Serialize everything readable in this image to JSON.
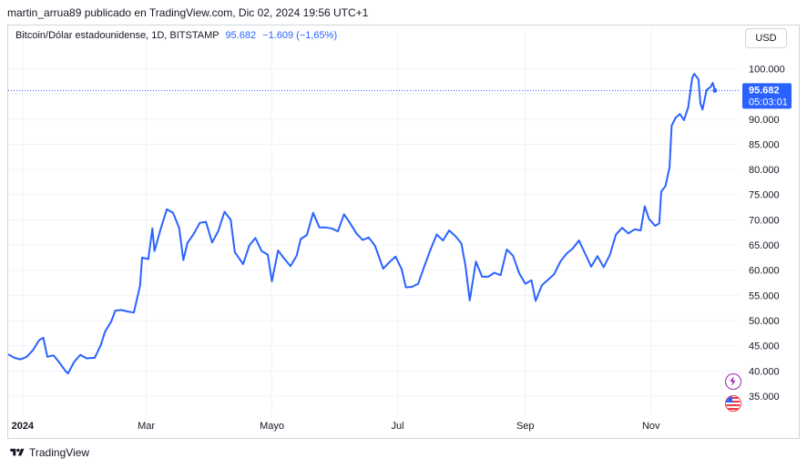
{
  "header": {
    "publisher_line": "martin_arrua89 publicado en TradingView.com, Dic 02, 2024 19:56 UTC+1"
  },
  "legend": {
    "symbol": "Bitcoin/Dólar estadounidense, 1D, BITSTAMP",
    "price": "95.682",
    "change": "−1.609 (−1,65%)"
  },
  "currency_button": "USD",
  "price_label": {
    "price": "95.682",
    "countdown": "05:03:01"
  },
  "footer": {
    "brand": "TradingView"
  },
  "icons": [
    "tradingview-logo-icon",
    "lightning-icon",
    "us-flag-icon"
  ],
  "colors": {
    "line": "#2962ff",
    "price_label_bg": "#2962ff",
    "grid": "#f0f3fa",
    "bolt_badge": "#9c27b0",
    "flag_badge": "#f23645"
  },
  "chart_data": {
    "type": "line",
    "title": "",
    "xlabel": "",
    "ylabel": "",
    "ylim": [
      31200,
      103700
    ],
    "y_ticks": [
      35000,
      40000,
      45000,
      50000,
      55000,
      60000,
      65000,
      70000,
      75000,
      80000,
      85000,
      90000,
      95000,
      100000
    ],
    "y_tick_labels": [
      "35.000",
      "40.000",
      "45.000",
      "50.000",
      "55.000",
      "60.000",
      "65.000",
      "70.000",
      "75.000",
      "80.000",
      "85.000",
      "90.000",
      "95.000",
      "100.000"
    ],
    "x_range": [
      "2023-12-25",
      "2024-12-14"
    ],
    "x_ticks": [
      {
        "date": "2024-01-01",
        "label": "2024"
      },
      {
        "date": "2024-03-01",
        "label": "Mar"
      },
      {
        "date": "2024-05-01",
        "label": "Mayo"
      },
      {
        "date": "2024-07-01",
        "label": "Jul"
      },
      {
        "date": "2024-09-01",
        "label": "Sep"
      },
      {
        "date": "2024-11-01",
        "label": "Nov"
      }
    ],
    "grid": true,
    "last_price": 95682,
    "series": [
      {
        "points": [
          [
            "2023-12-25",
            43300
          ],
          [
            "2023-12-28",
            42600
          ],
          [
            "2023-12-31",
            42300
          ],
          [
            "2024-01-03",
            42800
          ],
          [
            "2024-01-06",
            44100
          ],
          [
            "2024-01-09",
            46100
          ],
          [
            "2024-01-11",
            46600
          ],
          [
            "2024-01-13",
            42800
          ],
          [
            "2024-01-16",
            43100
          ],
          [
            "2024-01-19",
            41600
          ],
          [
            "2024-01-22",
            39900
          ],
          [
            "2024-01-23",
            39500
          ],
          [
            "2024-01-26",
            41800
          ],
          [
            "2024-01-29",
            43200
          ],
          [
            "2024-02-01",
            42500
          ],
          [
            "2024-02-05",
            42600
          ],
          [
            "2024-02-08",
            45200
          ],
          [
            "2024-02-10",
            47800
          ],
          [
            "2024-02-13",
            49800
          ],
          [
            "2024-02-15",
            52000
          ],
          [
            "2024-02-18",
            52100
          ],
          [
            "2024-02-21",
            51800
          ],
          [
            "2024-02-24",
            51600
          ],
          [
            "2024-02-27",
            57000
          ],
          [
            "2024-02-28",
            62500
          ],
          [
            "2024-03-02",
            62200
          ],
          [
            "2024-03-04",
            68300
          ],
          [
            "2024-03-05",
            63800
          ],
          [
            "2024-03-08",
            68200
          ],
          [
            "2024-03-11",
            72100
          ],
          [
            "2024-03-14",
            71400
          ],
          [
            "2024-03-17",
            68400
          ],
          [
            "2024-03-19",
            62000
          ],
          [
            "2024-03-21",
            65400
          ],
          [
            "2024-03-24",
            67200
          ],
          [
            "2024-03-27",
            69400
          ],
          [
            "2024-03-30",
            69600
          ],
          [
            "2024-04-02",
            65500
          ],
          [
            "2024-04-05",
            67800
          ],
          [
            "2024-04-08",
            71600
          ],
          [
            "2024-04-11",
            70000
          ],
          [
            "2024-04-13",
            63600
          ],
          [
            "2024-04-17",
            61200
          ],
          [
            "2024-04-20",
            64900
          ],
          [
            "2024-04-23",
            66400
          ],
          [
            "2024-04-26",
            63800
          ],
          [
            "2024-04-29",
            63100
          ],
          [
            "2024-05-01",
            57800
          ],
          [
            "2024-05-04",
            63900
          ],
          [
            "2024-05-07",
            62300
          ],
          [
            "2024-05-10",
            60800
          ],
          [
            "2024-05-13",
            62900
          ],
          [
            "2024-05-15",
            66200
          ],
          [
            "2024-05-18",
            67000
          ],
          [
            "2024-05-21",
            71400
          ],
          [
            "2024-05-24",
            68500
          ],
          [
            "2024-05-27",
            68500
          ],
          [
            "2024-05-30",
            68300
          ],
          [
            "2024-06-02",
            67700
          ],
          [
            "2024-06-05",
            71100
          ],
          [
            "2024-06-08",
            69300
          ],
          [
            "2024-06-11",
            67300
          ],
          [
            "2024-06-14",
            66000
          ],
          [
            "2024-06-17",
            66500
          ],
          [
            "2024-06-20",
            64900
          ],
          [
            "2024-06-24",
            60300
          ],
          [
            "2024-06-27",
            61600
          ],
          [
            "2024-06-30",
            62700
          ],
          [
            "2024-07-03",
            60200
          ],
          [
            "2024-07-05",
            56600
          ],
          [
            "2024-07-08",
            56700
          ],
          [
            "2024-07-11",
            57300
          ],
          [
            "2024-07-14",
            60800
          ],
          [
            "2024-07-17",
            64100
          ],
          [
            "2024-07-20",
            67100
          ],
          [
            "2024-07-23",
            65900
          ],
          [
            "2024-07-26",
            67900
          ],
          [
            "2024-07-29",
            66800
          ],
          [
            "2024-08-01",
            65300
          ],
          [
            "2024-08-03",
            60700
          ],
          [
            "2024-08-05",
            54000
          ],
          [
            "2024-08-08",
            61700
          ],
          [
            "2024-08-11",
            58700
          ],
          [
            "2024-08-14",
            58700
          ],
          [
            "2024-08-17",
            59500
          ],
          [
            "2024-08-20",
            59000
          ],
          [
            "2024-08-23",
            64100
          ],
          [
            "2024-08-26",
            62900
          ],
          [
            "2024-08-29",
            59400
          ],
          [
            "2024-09-01",
            57300
          ],
          [
            "2024-09-04",
            58000
          ],
          [
            "2024-09-06",
            53900
          ],
          [
            "2024-09-09",
            57000
          ],
          [
            "2024-09-12",
            58100
          ],
          [
            "2024-09-15",
            59200
          ],
          [
            "2024-09-18",
            61700
          ],
          [
            "2024-09-21",
            63300
          ],
          [
            "2024-09-24",
            64300
          ],
          [
            "2024-09-27",
            65900
          ],
          [
            "2024-09-30",
            63300
          ],
          [
            "2024-10-03",
            60700
          ],
          [
            "2024-10-06",
            62800
          ],
          [
            "2024-10-09",
            60600
          ],
          [
            "2024-10-12",
            63000
          ],
          [
            "2024-10-15",
            67100
          ],
          [
            "2024-10-18",
            68400
          ],
          [
            "2024-10-21",
            67300
          ],
          [
            "2024-10-24",
            68100
          ],
          [
            "2024-10-27",
            67900
          ],
          [
            "2024-10-29",
            72700
          ],
          [
            "2024-10-31",
            70200
          ],
          [
            "2024-11-03",
            68800
          ],
          [
            "2024-11-05",
            69300
          ],
          [
            "2024-11-06",
            75600
          ],
          [
            "2024-11-08",
            76700
          ],
          [
            "2024-11-10",
            80400
          ],
          [
            "2024-11-11",
            88700
          ],
          [
            "2024-11-13",
            90300
          ],
          [
            "2024-11-15",
            91000
          ],
          [
            "2024-11-17",
            89800
          ],
          [
            "2024-11-19",
            92300
          ],
          [
            "2024-11-21",
            98200
          ],
          [
            "2024-11-22",
            99000
          ],
          [
            "2024-11-24",
            97900
          ],
          [
            "2024-11-25",
            93100
          ],
          [
            "2024-11-26",
            91900
          ],
          [
            "2024-11-28",
            95800
          ],
          [
            "2024-11-30",
            96400
          ],
          [
            "2024-12-01",
            97200
          ],
          [
            "2024-12-02",
            95682
          ]
        ]
      }
    ]
  }
}
